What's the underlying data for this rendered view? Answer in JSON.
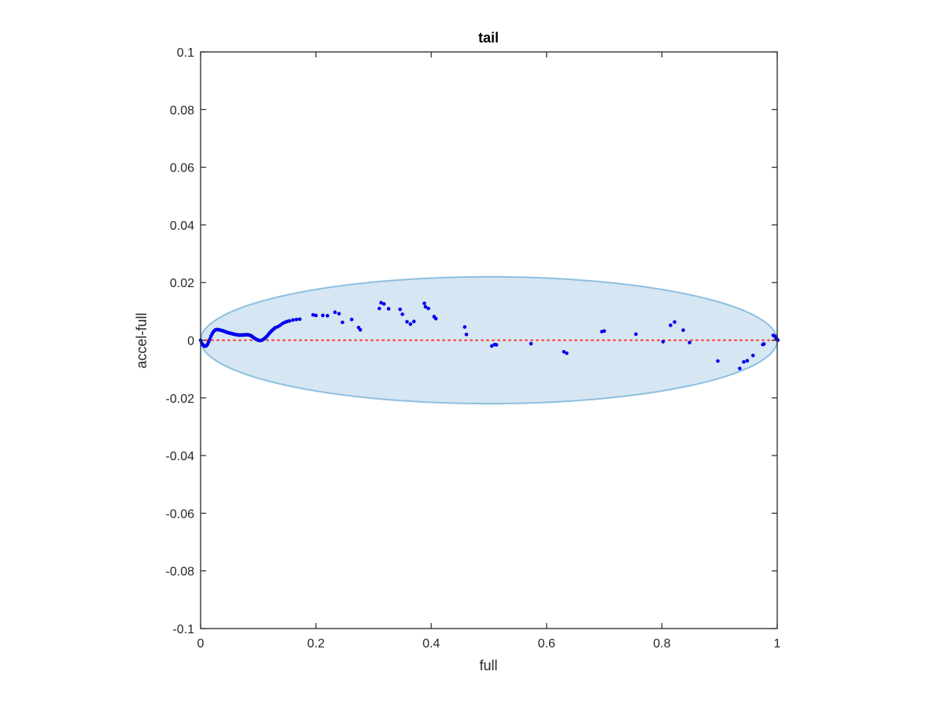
{
  "chart_data": {
    "type": "scatter",
    "title": "tail",
    "xlabel": "full",
    "ylabel": "accel-full",
    "xlim": [
      0,
      1
    ],
    "ylim": [
      -0.1,
      0.1
    ],
    "x_ticks": [
      0,
      0.2,
      0.4,
      0.6,
      0.8,
      1
    ],
    "x_tick_labels": [
      "0",
      "0.2",
      "0.4",
      "0.6",
      "0.8",
      "1"
    ],
    "y_ticks": [
      -0.1,
      -0.08,
      -0.06,
      -0.04,
      -0.02,
      0,
      0.02,
      0.04,
      0.06,
      0.08,
      0.1
    ],
    "y_tick_labels": [
      "-0.1",
      "-0.08",
      "-0.06",
      "-0.04",
      "-0.02",
      "0",
      "0.02",
      "0.04",
      "0.06",
      "0.08",
      "0.1"
    ],
    "grid": false,
    "ellipse": {
      "cx": 0.5,
      "cy": 0,
      "rx": 0.5,
      "ry": 0.022,
      "fill": "#d6e6f3",
      "stroke": "#8ebfe0"
    },
    "reference_line": {
      "y": 0,
      "color": "#ff3333",
      "style": "dotted"
    },
    "series": [
      {
        "color": "#0000ee",
        "points": [
          [
            0.0,
            0.0
          ],
          [
            0.002,
            -0.001
          ],
          [
            0.004,
            -0.0016
          ],
          [
            0.006,
            -0.002
          ],
          [
            0.008,
            -0.0021
          ],
          [
            0.01,
            -0.0019
          ],
          [
            0.012,
            -0.0014
          ],
          [
            0.014,
            -0.0006
          ],
          [
            0.016,
            0.0004
          ],
          [
            0.018,
            0.0014
          ],
          [
            0.02,
            0.0022
          ],
          [
            0.022,
            0.0029
          ],
          [
            0.024,
            0.0033
          ],
          [
            0.026,
            0.0036
          ],
          [
            0.028,
            0.0037
          ],
          [
            0.03,
            0.0037
          ],
          [
            0.032,
            0.0036
          ],
          [
            0.034,
            0.0035
          ],
          [
            0.036,
            0.0034
          ],
          [
            0.038,
            0.0033
          ],
          [
            0.04,
            0.0032
          ],
          [
            0.042,
            0.003
          ],
          [
            0.044,
            0.0029
          ],
          [
            0.046,
            0.0027
          ],
          [
            0.048,
            0.0026
          ],
          [
            0.05,
            0.0025
          ],
          [
            0.052,
            0.0024
          ],
          [
            0.054,
            0.0023
          ],
          [
            0.056,
            0.0022
          ],
          [
            0.058,
            0.0021
          ],
          [
            0.06,
            0.002
          ],
          [
            0.062,
            0.0019
          ],
          [
            0.064,
            0.0019
          ],
          [
            0.066,
            0.0018
          ],
          [
            0.068,
            0.0018
          ],
          [
            0.07,
            0.0018
          ],
          [
            0.072,
            0.0018
          ],
          [
            0.074,
            0.0018
          ],
          [
            0.076,
            0.0019
          ],
          [
            0.078,
            0.0019
          ],
          [
            0.08,
            0.0019
          ],
          [
            0.082,
            0.0019
          ],
          [
            0.084,
            0.0018
          ],
          [
            0.086,
            0.0017
          ],
          [
            0.088,
            0.0015
          ],
          [
            0.09,
            0.0012
          ],
          [
            0.092,
            0.0009
          ],
          [
            0.094,
            0.0006
          ],
          [
            0.096,
            0.0004
          ],
          [
            0.098,
            0.0002
          ],
          [
            0.1,
            0.0
          ],
          [
            0.102,
            -0.0001
          ],
          [
            0.104,
            -0.0001
          ],
          [
            0.106,
            0.0
          ],
          [
            0.108,
            0.0002
          ],
          [
            0.11,
            0.0005
          ],
          [
            0.112,
            0.0008
          ],
          [
            0.114,
            0.0012
          ],
          [
            0.116,
            0.0016
          ],
          [
            0.118,
            0.0021
          ],
          [
            0.12,
            0.0026
          ],
          [
            0.122,
            0.003
          ],
          [
            0.124,
            0.0034
          ],
          [
            0.126,
            0.0038
          ],
          [
            0.128,
            0.0041
          ],
          [
            0.13,
            0.0044
          ],
          [
            0.134,
            0.0047
          ],
          [
            0.138,
            0.0052
          ],
          [
            0.142,
            0.0058
          ],
          [
            0.146,
            0.0062
          ],
          [
            0.15,
            0.0065
          ],
          [
            0.154,
            0.0067
          ],
          [
            0.16,
            0.007
          ],
          [
            0.166,
            0.0072
          ],
          [
            0.172,
            0.0073
          ],
          [
            0.195,
            0.0088
          ],
          [
            0.2,
            0.0086
          ],
          [
            0.212,
            0.0086
          ],
          [
            0.22,
            0.0085
          ],
          [
            0.233,
            0.0097
          ],
          [
            0.24,
            0.0092
          ],
          [
            0.246,
            0.0062
          ],
          [
            0.262,
            0.0072
          ],
          [
            0.274,
            0.0044
          ],
          [
            0.277,
            0.0036
          ],
          [
            0.31,
            0.011
          ],
          [
            0.313,
            0.013
          ],
          [
            0.318,
            0.0126
          ],
          [
            0.326,
            0.0109
          ],
          [
            0.346,
            0.0107
          ],
          [
            0.35,
            0.009
          ],
          [
            0.358,
            0.0064
          ],
          [
            0.364,
            0.0056
          ],
          [
            0.37,
            0.0065
          ],
          [
            0.388,
            0.0128
          ],
          [
            0.39,
            0.0116
          ],
          [
            0.395,
            0.011
          ],
          [
            0.405,
            0.0082
          ],
          [
            0.408,
            0.0075
          ],
          [
            0.458,
            0.0046
          ],
          [
            0.461,
            0.002
          ],
          [
            0.505,
            -0.002
          ],
          [
            0.51,
            -0.0015
          ],
          [
            0.513,
            -0.0016
          ],
          [
            0.573,
            -0.0012
          ],
          [
            0.63,
            -0.004
          ],
          [
            0.635,
            -0.0045
          ],
          [
            0.696,
            0.003
          ],
          [
            0.7,
            0.0032
          ],
          [
            0.755,
            0.0021
          ],
          [
            0.802,
            -0.0005
          ],
          [
            0.815,
            0.0052
          ],
          [
            0.822,
            0.0063
          ],
          [
            0.837,
            0.0035
          ],
          [
            0.848,
            -0.0008
          ],
          [
            0.897,
            -0.0072
          ],
          [
            0.935,
            -0.0098
          ],
          [
            0.942,
            -0.0075
          ],
          [
            0.948,
            -0.0071
          ],
          [
            0.958,
            -0.0053
          ],
          [
            0.975,
            -0.0015
          ],
          [
            0.977,
            -0.0013
          ],
          [
            0.993,
            0.0017
          ],
          [
            0.996,
            0.0014
          ],
          [
            0.998,
            0.0008
          ],
          [
            1.0,
            0.0003
          ],
          [
            1.001,
            0.0
          ]
        ]
      }
    ]
  }
}
